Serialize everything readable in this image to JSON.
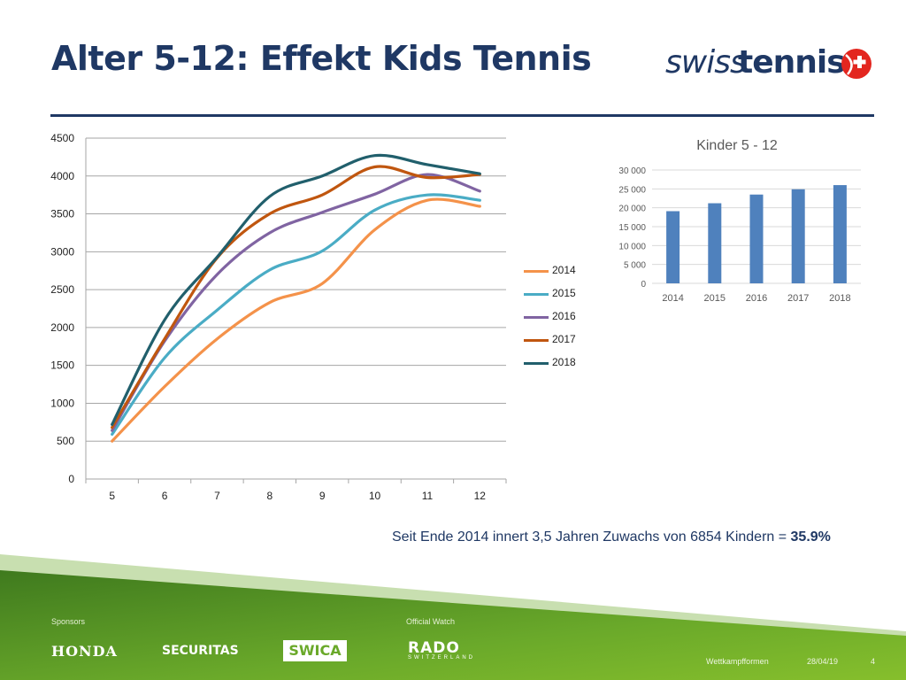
{
  "slide": {
    "title": "Alter 5-12: Effekt Kids Tennis",
    "logo": {
      "part1": "swiss",
      "part2": "tennis"
    },
    "summary_prefix": "Seit Ende 2014 innert 3,5 Jahren Zuwachs von 6854 Kindern = ",
    "summary_highlight": "35.9%",
    "footer": {
      "sponsors_label": "Sponsors",
      "official_label": "Official Watch",
      "honda": "HONDA",
      "securitas": "SECURITAS",
      "swica": "SWICA",
      "rado": "RADO",
      "rado_sub": "SWITZERLAND",
      "topic": "Wettkampfformen",
      "date": "28/04/19",
      "page": "4"
    },
    "colors": {
      "title": "#1f3864",
      "footer_green": "#5e9a24",
      "bar": "#4f81bd"
    }
  },
  "chart_data": [
    {
      "type": "line",
      "title": "",
      "xlabel": "",
      "ylabel": "",
      "x": [
        5,
        6,
        7,
        8,
        9,
        10,
        11,
        12
      ],
      "ylim": [
        0,
        4500
      ],
      "yticks": [
        0,
        500,
        1000,
        1500,
        2000,
        2500,
        3000,
        3500,
        4000,
        4500
      ],
      "grid": true,
      "legend_position": "right",
      "series": [
        {
          "name": "2014",
          "color": "#f4924a",
          "values": [
            500,
            1220,
            1850,
            2330,
            2580,
            3290,
            3680,
            3600
          ]
        },
        {
          "name": "2015",
          "color": "#4aacc5",
          "values": [
            590,
            1600,
            2230,
            2760,
            3010,
            3550,
            3750,
            3680
          ]
        },
        {
          "name": "2016",
          "color": "#8064a2",
          "values": [
            640,
            1820,
            2700,
            3250,
            3520,
            3760,
            4020,
            3800
          ]
        },
        {
          "name": "2017",
          "color": "#c0560f",
          "values": [
            680,
            1850,
            2920,
            3500,
            3750,
            4120,
            3980,
            4020
          ]
        },
        {
          "name": "2018",
          "color": "#215f6c",
          "values": [
            720,
            2100,
            2930,
            3730,
            4000,
            4270,
            4150,
            4030
          ]
        }
      ]
    },
    {
      "type": "bar",
      "title": "Kinder 5 - 12",
      "categories": [
        "2014",
        "2015",
        "2016",
        "2017",
        "2018"
      ],
      "values": [
        19100,
        21200,
        23500,
        24900,
        26000
      ],
      "ylim": [
        0,
        30000
      ],
      "yticks": [
        0,
        5000,
        10000,
        15000,
        20000,
        25000,
        30000
      ],
      "ytick_labels": [
        "0",
        "5 000",
        "10 000",
        "15 000",
        "20 000",
        "25 000",
        "30 000"
      ],
      "grid": true
    }
  ]
}
